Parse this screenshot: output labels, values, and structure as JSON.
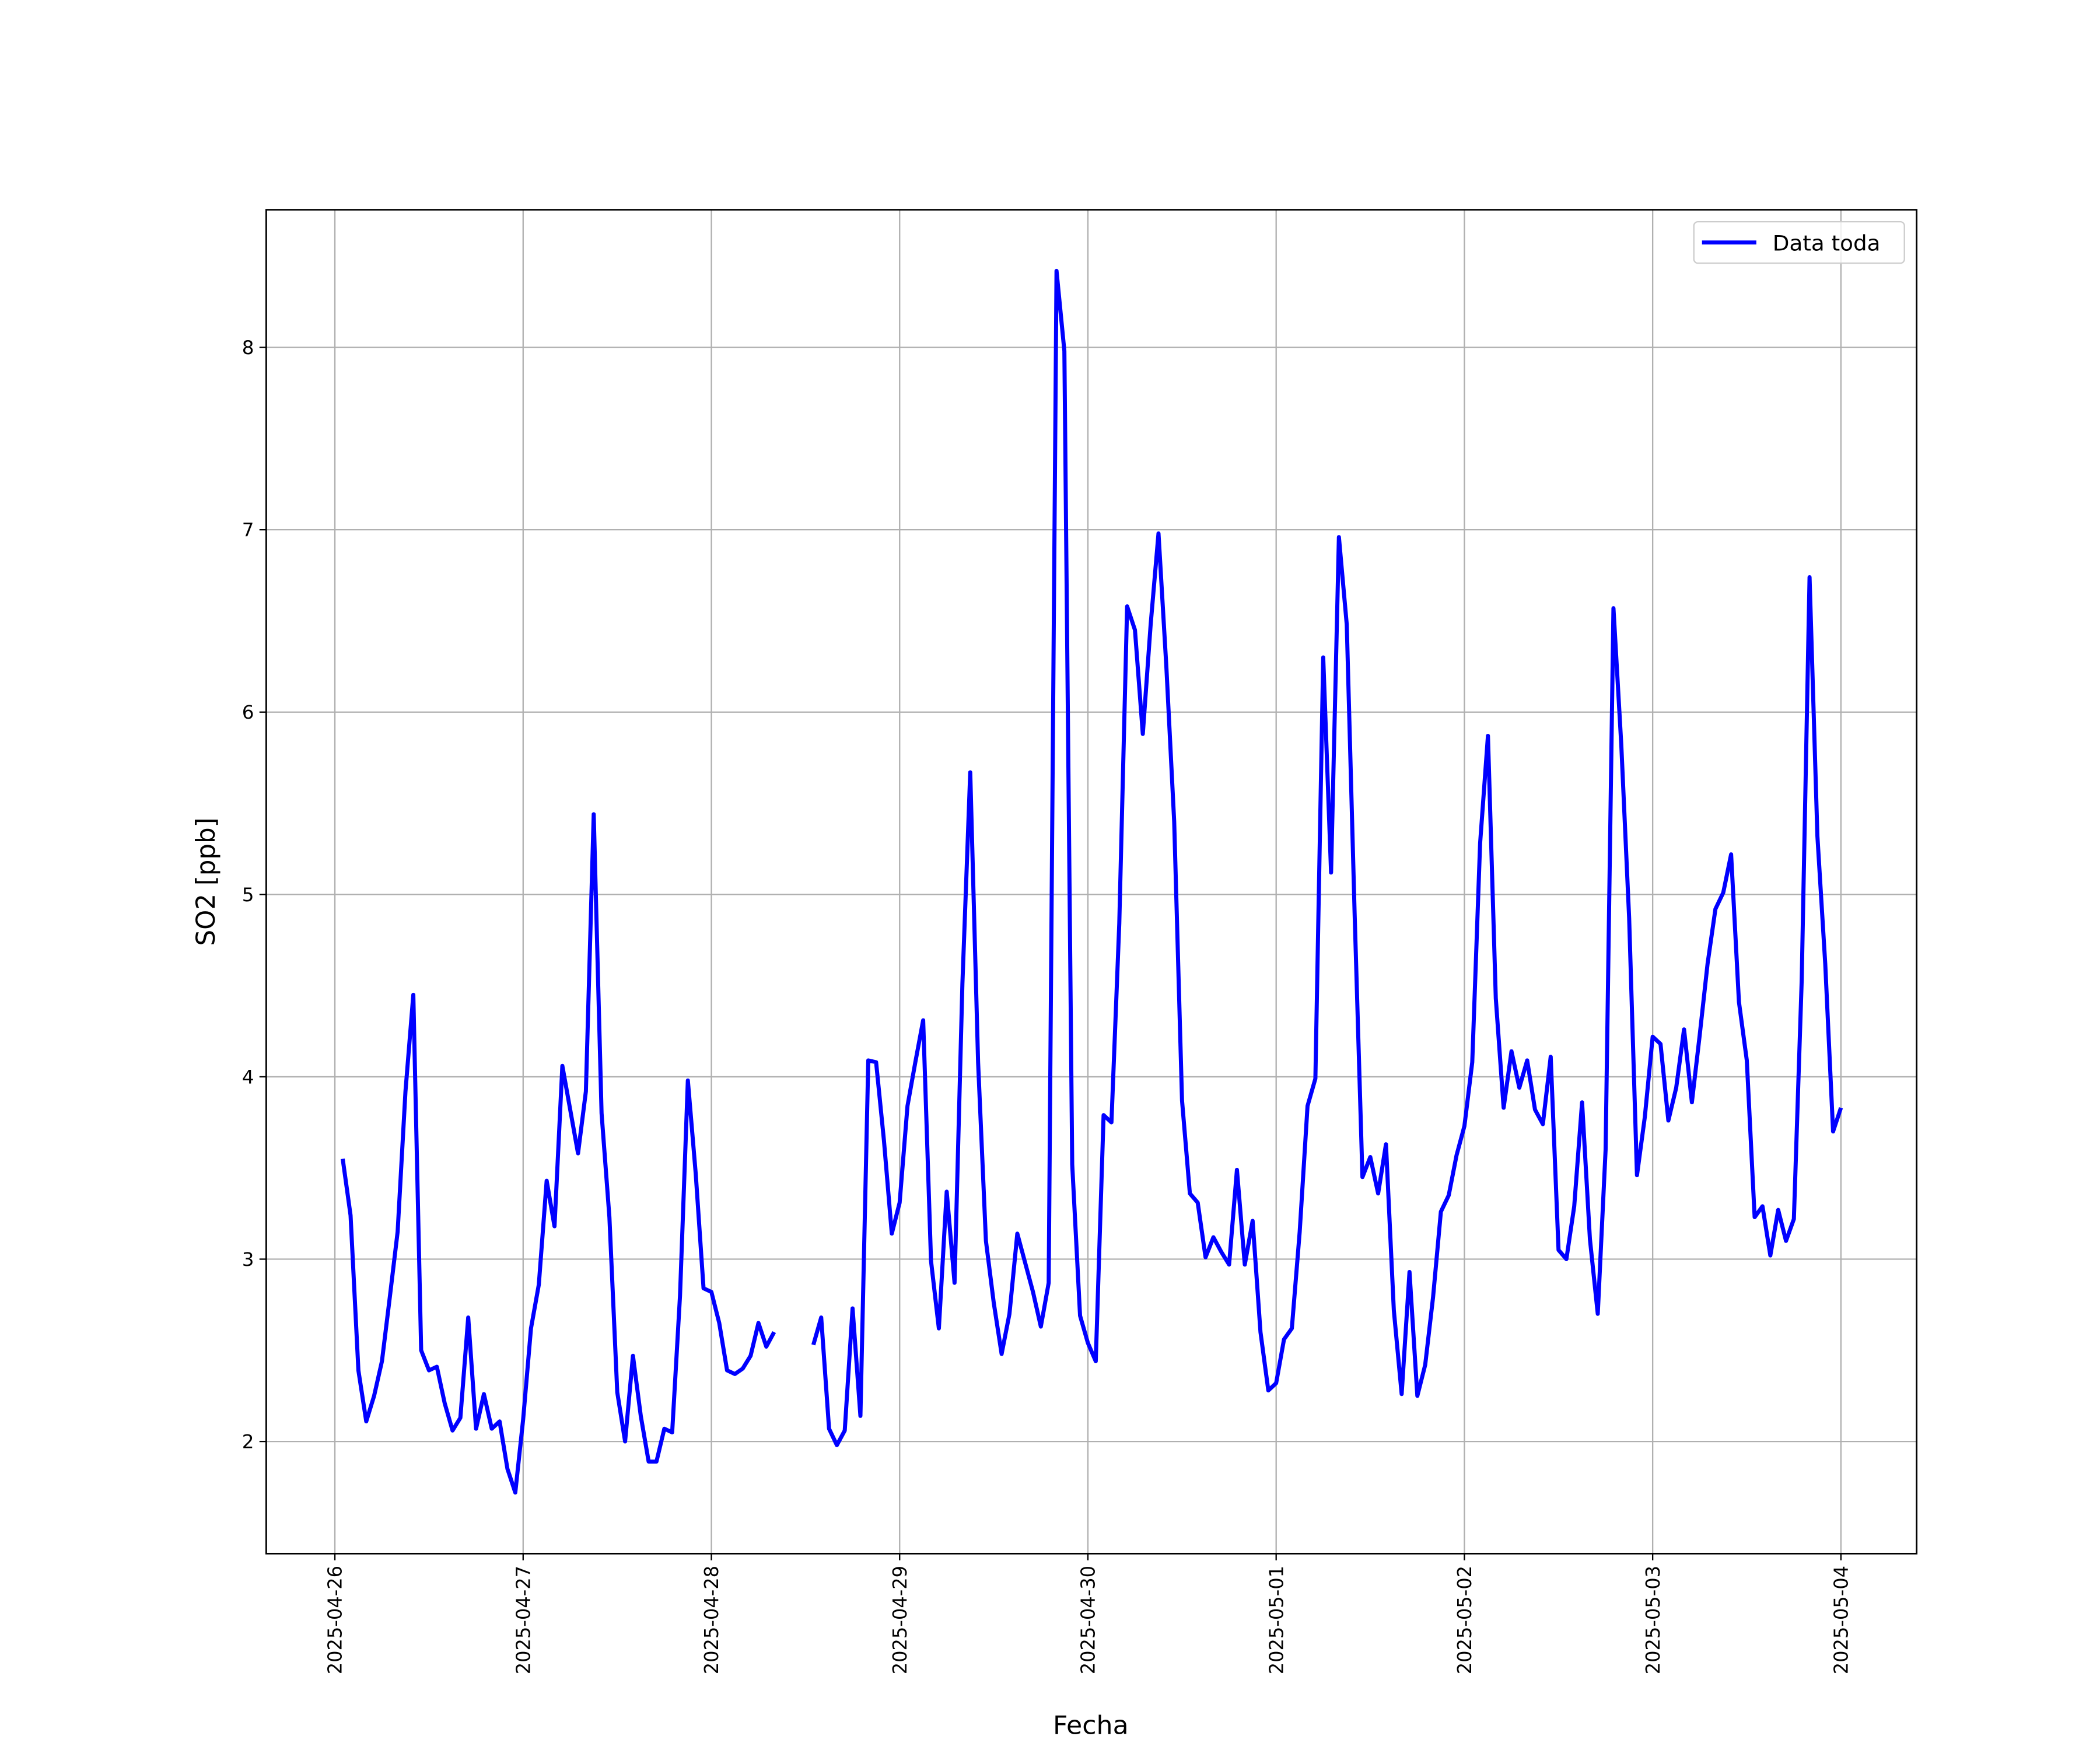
{
  "chart_data": {
    "type": "line",
    "ylabel": "SO2 [ppb]",
    "xlabel": "Fecha",
    "x": [
      "2025-04-26 01:00",
      "2025-04-26 02:00",
      "2025-04-26 03:00",
      "2025-04-26 04:00",
      "2025-04-26 05:00",
      "2025-04-26 06:00",
      "2025-04-26 07:00",
      "2025-04-26 08:00",
      "2025-04-26 09:00",
      "2025-04-26 10:00",
      "2025-04-26 11:00",
      "2025-04-26 12:00",
      "2025-04-26 13:00",
      "2025-04-26 14:00",
      "2025-04-26 15:00",
      "2025-04-26 16:00",
      "2025-04-26 17:00",
      "2025-04-26 18:00",
      "2025-04-26 19:00",
      "2025-04-26 20:00",
      "2025-04-26 21:00",
      "2025-04-26 22:00",
      "2025-04-26 23:00",
      "2025-04-27 00:00",
      "2025-04-27 01:00",
      "2025-04-27 02:00",
      "2025-04-27 03:00",
      "2025-04-27 04:00",
      "2025-04-27 05:00",
      "2025-04-27 06:00",
      "2025-04-27 07:00",
      "2025-04-27 08:00",
      "2025-04-27 09:00",
      "2025-04-27 10:00",
      "2025-04-27 11:00",
      "2025-04-27 12:00",
      "2025-04-27 13:00",
      "2025-04-27 14:00",
      "2025-04-27 15:00",
      "2025-04-27 16:00",
      "2025-04-27 17:00",
      "2025-04-27 18:00",
      "2025-04-27 19:00",
      "2025-04-27 20:00",
      "2025-04-27 21:00",
      "2025-04-27 22:00",
      "2025-04-27 23:00",
      "2025-04-28 00:00",
      "2025-04-28 01:00",
      "2025-04-28 02:00",
      "2025-04-28 03:00",
      "2025-04-28 04:00",
      "2025-04-28 05:00",
      "2025-04-28 06:00",
      "2025-04-28 07:00",
      "2025-04-28 08:00",
      "2025-04-28 09:00",
      "2025-04-28 10:00",
      "2025-04-28 11:00",
      "2025-04-28 12:00",
      "2025-04-28 13:00",
      "2025-04-28 14:00",
      "2025-04-28 15:00",
      "2025-04-28 16:00",
      "2025-04-28 17:00",
      "2025-04-28 18:00",
      "2025-04-28 19:00",
      "2025-04-28 20:00",
      "2025-04-28 21:00",
      "2025-04-28 22:00",
      "2025-04-28 23:00",
      "2025-04-29 00:00",
      "2025-04-29 01:00",
      "2025-04-29 02:00",
      "2025-04-29 03:00",
      "2025-04-29 04:00",
      "2025-04-29 05:00",
      "2025-04-29 06:00",
      "2025-04-29 07:00",
      "2025-04-29 08:00",
      "2025-04-29 09:00",
      "2025-04-29 10:00",
      "2025-04-29 11:00",
      "2025-04-29 12:00",
      "2025-04-29 13:00",
      "2025-04-29 14:00",
      "2025-04-29 15:00",
      "2025-04-29 16:00",
      "2025-04-29 17:00",
      "2025-04-29 18:00",
      "2025-04-29 19:00",
      "2025-04-29 20:00",
      "2025-04-29 21:00",
      "2025-04-29 22:00",
      "2025-04-29 23:00",
      "2025-04-30 00:00",
      "2025-04-30 01:00",
      "2025-04-30 02:00",
      "2025-04-30 03:00",
      "2025-04-30 04:00",
      "2025-04-30 05:00",
      "2025-04-30 06:00",
      "2025-04-30 07:00",
      "2025-04-30 08:00",
      "2025-04-30 09:00",
      "2025-04-30 10:00",
      "2025-04-30 11:00",
      "2025-04-30 12:00",
      "2025-04-30 13:00",
      "2025-04-30 14:00",
      "2025-04-30 15:00",
      "2025-04-30 16:00",
      "2025-04-30 17:00",
      "2025-04-30 18:00",
      "2025-04-30 19:00",
      "2025-04-30 20:00",
      "2025-04-30 21:00",
      "2025-04-30 22:00",
      "2025-04-30 23:00",
      "2025-05-01 00:00",
      "2025-05-01 01:00",
      "2025-05-01 02:00",
      "2025-05-01 03:00",
      "2025-05-01 04:00",
      "2025-05-01 05:00",
      "2025-05-01 06:00",
      "2025-05-01 07:00",
      "2025-05-01 08:00",
      "2025-05-01 09:00",
      "2025-05-01 10:00",
      "2025-05-01 11:00",
      "2025-05-01 12:00",
      "2025-05-01 13:00",
      "2025-05-01 14:00",
      "2025-05-01 15:00",
      "2025-05-01 16:00",
      "2025-05-01 17:00",
      "2025-05-01 18:00",
      "2025-05-01 19:00",
      "2025-05-01 20:00",
      "2025-05-01 21:00",
      "2025-05-01 22:00",
      "2025-05-01 23:00",
      "2025-05-02 00:00",
      "2025-05-02 01:00",
      "2025-05-02 02:00",
      "2025-05-02 03:00",
      "2025-05-02 04:00",
      "2025-05-02 05:00",
      "2025-05-02 06:00",
      "2025-05-02 07:00",
      "2025-05-02 08:00",
      "2025-05-02 09:00",
      "2025-05-02 10:00",
      "2025-05-02 11:00",
      "2025-05-02 12:00",
      "2025-05-02 13:00",
      "2025-05-02 14:00",
      "2025-05-02 15:00",
      "2025-05-02 16:00",
      "2025-05-02 17:00",
      "2025-05-02 18:00",
      "2025-05-02 19:00",
      "2025-05-02 20:00",
      "2025-05-02 21:00",
      "2025-05-02 22:00",
      "2025-05-02 23:00",
      "2025-05-03 00:00",
      "2025-05-03 01:00",
      "2025-05-03 02:00",
      "2025-05-03 03:00",
      "2025-05-03 04:00",
      "2025-05-03 05:00",
      "2025-05-03 06:00",
      "2025-05-03 07:00",
      "2025-05-03 08:00",
      "2025-05-03 09:00",
      "2025-05-03 10:00",
      "2025-05-03 11:00",
      "2025-05-03 12:00",
      "2025-05-03 13:00",
      "2025-05-03 14:00",
      "2025-05-03 15:00",
      "2025-05-03 16:00",
      "2025-05-03 17:00",
      "2025-05-03 18:00",
      "2025-05-03 19:00",
      "2025-05-03 20:00",
      "2025-05-03 21:00",
      "2025-05-03 22:00",
      "2025-05-03 23:00",
      "2025-05-04 00:00"
    ],
    "series": [
      {
        "name": "Data toda",
        "color": "#0000ff",
        "values": [
          3.55,
          3.24,
          2.39,
          2.11,
          2.25,
          2.44,
          2.79,
          3.15,
          3.92,
          4.45,
          2.5,
          2.39,
          2.41,
          2.21,
          2.06,
          2.13,
          2.68,
          2.07,
          2.26,
          2.07,
          2.11,
          1.85,
          1.72,
          2.12,
          2.62,
          2.86,
          3.43,
          3.18,
          4.06,
          3.82,
          3.58,
          3.92,
          5.44,
          3.8,
          3.23,
          2.27,
          2.0,
          2.47,
          2.14,
          1.89,
          1.89,
          2.07,
          2.05,
          2.8,
          3.98,
          3.47,
          2.84,
          2.82,
          2.65,
          2.39,
          2.37,
          2.4,
          2.47,
          2.65,
          2.52,
          2.6,
          null,
          null,
          null,
          null,
          2.53,
          2.68,
          2.07,
          1.98,
          2.06,
          2.73,
          2.14,
          4.09,
          4.08,
          3.65,
          3.14,
          3.31,
          3.84,
          4.08,
          4.31,
          2.99,
          2.62,
          3.37,
          2.87,
          4.51,
          5.67,
          4.08,
          3.1,
          2.76,
          2.48,
          2.7,
          3.14,
          2.98,
          2.82,
          2.63,
          2.87,
          8.42,
          7.98,
          3.52,
          2.69,
          2.54,
          2.44,
          3.79,
          3.75,
          4.84,
          6.58,
          6.45,
          5.88,
          6.48,
          6.98,
          6.25,
          5.4,
          3.87,
          3.36,
          3.31,
          3.01,
          3.12,
          3.04,
          2.97,
          3.49,
          2.97,
          3.21,
          2.6,
          2.28,
          2.32,
          2.56,
          2.62,
          3.15,
          3.84,
          3.99,
          6.3,
          5.12,
          6.96,
          6.48,
          4.9,
          3.45,
          3.56,
          3.36,
          3.63,
          2.72,
          2.26,
          2.93,
          2.25,
          2.42,
          2.79,
          3.26,
          3.35,
          3.57,
          3.73,
          4.08,
          5.28,
          5.87,
          4.43,
          3.83,
          4.14,
          3.94,
          4.09,
          3.82,
          3.74,
          4.11,
          3.05,
          3.0,
          3.29,
          3.86,
          3.11,
          2.7,
          3.6,
          6.57,
          5.82,
          4.87,
          3.46,
          3.78,
          4.22,
          4.18,
          3.76,
          3.94,
          4.26,
          3.86,
          4.23,
          4.62,
          4.92,
          5.01,
          5.22,
          4.41,
          4.09,
          3.23,
          3.29,
          3.02,
          3.27,
          3.1,
          3.22,
          4.53,
          6.74,
          5.32,
          4.62,
          3.7,
          3.83
        ]
      }
    ],
    "xlim": [
      "2025-04-25 15:15",
      "2025-05-04 09:39"
    ],
    "xticks": [
      "2025-04-26",
      "2025-04-27",
      "2025-04-28",
      "2025-04-29",
      "2025-04-30",
      "2025-05-01",
      "2025-05-02",
      "2025-05-03",
      "2025-05-04"
    ],
    "ylim": [
      1.385,
      8.755
    ],
    "yticks": [
      2,
      3,
      4,
      5,
      6,
      7,
      8
    ],
    "grid": true,
    "legend": "upper right"
  }
}
